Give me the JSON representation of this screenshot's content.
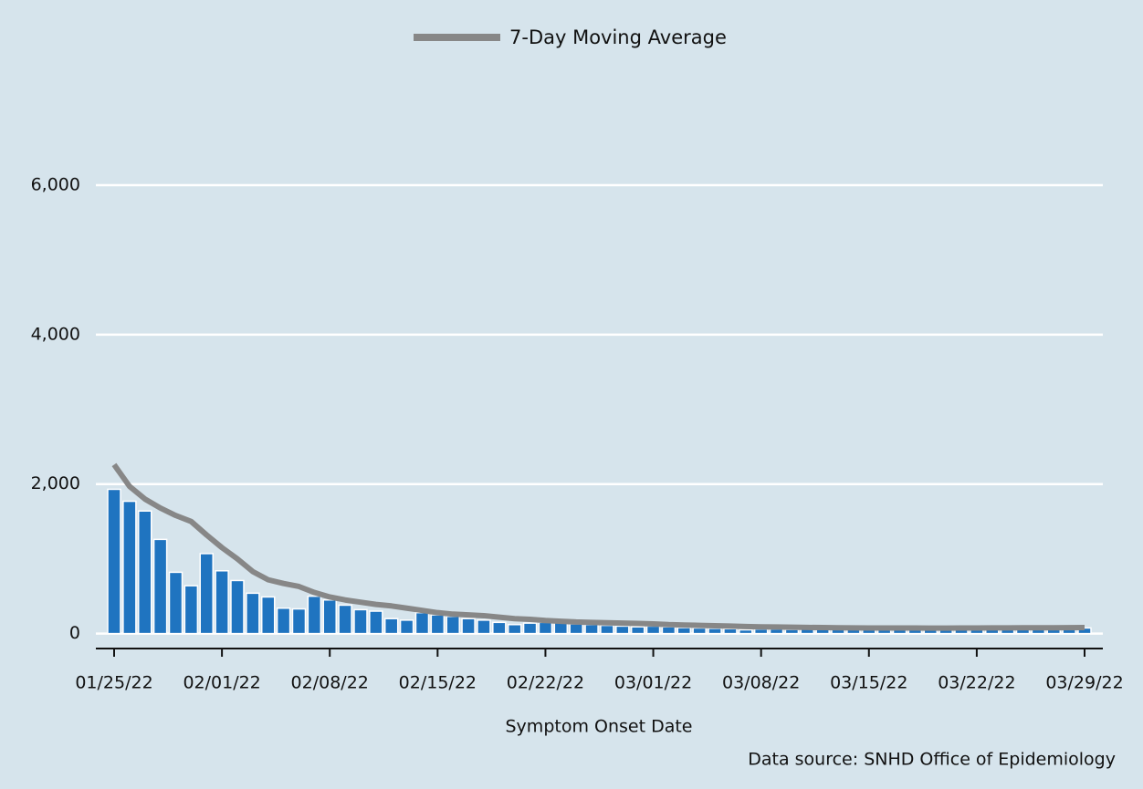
{
  "chart_data": {
    "type": "bar-line",
    "legend": "top",
    "xlabel": "Symptom Onset Date",
    "source": "Data source: SNHD Office of Epidemiology",
    "categories": [
      "01/25/22",
      null,
      null,
      null,
      null,
      null,
      null,
      "02/01/22",
      null,
      null,
      null,
      null,
      null,
      null,
      "02/08/22",
      null,
      null,
      null,
      null,
      null,
      null,
      "02/15/22",
      null,
      null,
      null,
      null,
      null,
      null,
      "02/22/22",
      null,
      null,
      null,
      null,
      null,
      null,
      "03/01/22",
      null,
      null,
      null,
      null,
      null,
      null,
      "03/08/22",
      null,
      null,
      null,
      null,
      null,
      null,
      "03/15/22",
      null,
      null,
      null,
      null,
      null,
      null,
      "03/22/22",
      null,
      null,
      null,
      null,
      null,
      null,
      "03/29/22"
    ],
    "series": [
      {
        "type": "bar",
        "color": "#1f74c0",
        "values": [
          1930,
          1770,
          1640,
          1260,
          820,
          640,
          1070,
          840,
          710,
          540,
          490,
          340,
          330,
          500,
          450,
          380,
          320,
          300,
          200,
          180,
          280,
          250,
          230,
          200,
          180,
          150,
          120,
          140,
          150,
          150,
          130,
          120,
          110,
          100,
          90,
          100,
          90,
          80,
          75,
          70,
          65,
          50,
          60,
          60,
          55,
          60,
          60,
          55,
          60,
          55,
          55,
          60,
          55,
          55,
          55,
          60,
          60,
          55,
          60,
          60,
          60,
          65,
          60,
          75
        ]
      },
      {
        "type": "line",
        "name": "7-Day Moving Average",
        "color": "#878787",
        "values": [
          2260,
          1970,
          1800,
          1680,
          1580,
          1500,
          1320,
          1150,
          1000,
          830,
          720,
          670,
          630,
          550,
          490,
          450,
          420,
          390,
          370,
          340,
          310,
          280,
          260,
          250,
          240,
          220,
          200,
          190,
          175,
          165,
          155,
          150,
          145,
          140,
          135,
          130,
          120,
          115,
          110,
          105,
          100,
          95,
          90,
          88,
          85,
          82,
          80,
          78,
          76,
          75,
          75,
          75,
          74,
          73,
          73,
          74,
          75,
          76,
          76,
          77,
          78,
          78,
          79,
          80
        ]
      }
    ],
    "ylim": [
      -200,
      7000
    ],
    "yticks": [
      {
        "value": 0,
        "label": "0"
      },
      {
        "value": 2000,
        "label": "2,000"
      },
      {
        "value": 4000,
        "label": "4,000"
      },
      {
        "value": 6000,
        "label": "6,000"
      }
    ],
    "grid": true
  }
}
